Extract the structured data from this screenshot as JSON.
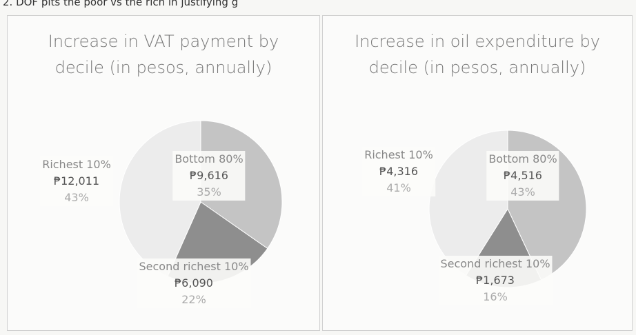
{
  "header": "2. DOF pits the poor vs the rich in justifying g",
  "chart_data": [
    {
      "type": "pie",
      "title": "Increase in VAT payment by decile (in pesos, annually)",
      "categories": [
        "Bottom 80%",
        "Second richest 10%",
        "Richest 10%"
      ],
      "values": [
        9616,
        6090,
        12011
      ],
      "value_labels": [
        "₱9,616",
        "₱6,090",
        "₱12,011"
      ],
      "percent_labels": [
        "35%",
        "22%",
        "43%"
      ],
      "colors": [
        "#c4c4c4",
        "#8e8e8e",
        "#ececec"
      ]
    },
    {
      "type": "pie",
      "title": "Increase in oil expenditure by decile (in pesos, annually)",
      "categories": [
        "Bottom 80%",
        "Second richest 10%",
        "Richest 10%"
      ],
      "values": [
        4516,
        1673,
        4316
      ],
      "value_labels": [
        "₱4,516",
        "₱1,673",
        "₱4,316"
      ],
      "percent_labels": [
        "43%",
        "16%",
        "41%"
      ],
      "colors": [
        "#c4c4c4",
        "#8e8e8e",
        "#ececec"
      ]
    }
  ]
}
